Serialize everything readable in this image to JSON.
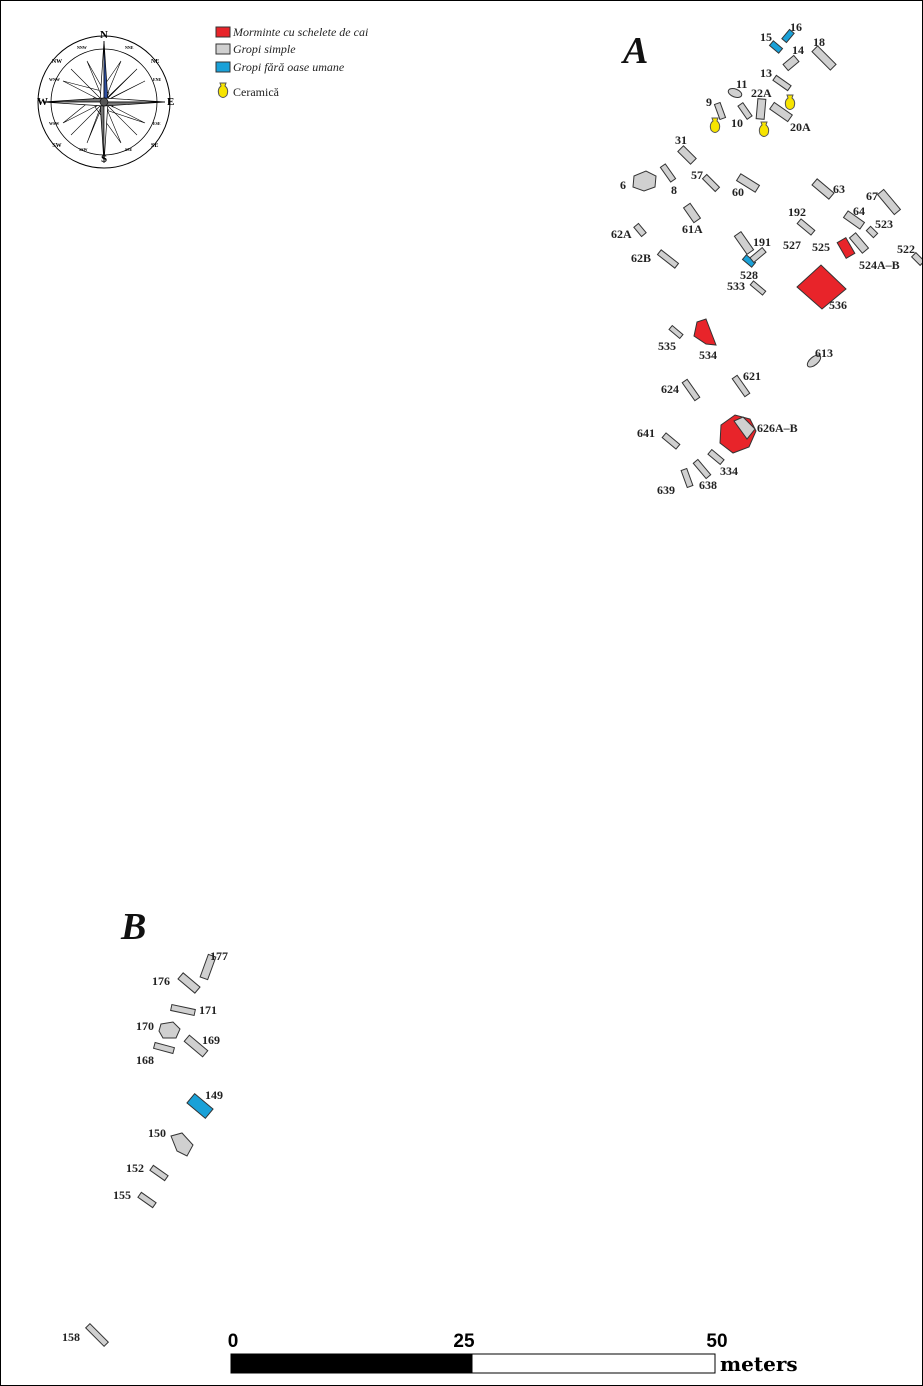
{
  "colors": {
    "horse_graves": "#e8242a",
    "simple_pits": "#d0d0d0",
    "pits_no_human_bones": "#1aa1d8",
    "ceramics": "#f7e400",
    "compass_north": "#2f4fa0"
  },
  "zones": {
    "a": "A",
    "b": "B"
  },
  "legend": {
    "horse_graves": "Morminte cu schelete de cai",
    "simple_pits": "Gropi simple",
    "pits_no_human_bones": "Gropi fără oase umane",
    "ceramics": "Ceramică"
  },
  "compass": {
    "n": "N",
    "s": "S",
    "e": "E",
    "w": "W",
    "ne": "NE",
    "nw": "NW",
    "se": "SE",
    "sw": "SW",
    "nne": "NNE",
    "nnw": "NNW",
    "ene": "ENE",
    "wnw": "WNW",
    "ese": "ESE",
    "wsw": "WSW",
    "sse": "SSE",
    "ssw": "SSW"
  },
  "scale": {
    "start": "0",
    "mid": "25",
    "end": "50",
    "unit": "meters"
  },
  "features": {
    "f15": "15",
    "f16": "16",
    "f14": "14",
    "f18": "18",
    "f13": "13",
    "f11": "11",
    "f22a": "22A",
    "f9": "9",
    "f10": "10",
    "f20a": "20A",
    "f31": "31",
    "f6": "6",
    "f8": "8",
    "f57": "57",
    "f60": "60",
    "f63": "63",
    "f67": "67",
    "f64": "64",
    "f523": "523",
    "f192": "192",
    "f61a": "61A",
    "f62a": "62A",
    "f62b": "62B",
    "f191": "191",
    "f527": "527",
    "f525": "525",
    "f524ab": "524A–B",
    "f522": "522",
    "f528": "528",
    "f533": "533",
    "f536": "536",
    "f535": "535",
    "f534": "534",
    "f613": "613",
    "f621": "621",
    "f624": "624",
    "f641": "641",
    "f626ab": "626A–B",
    "f334": "334",
    "f638": "638",
    "f639": "639",
    "f177": "177",
    "f176": "176",
    "f171": "171",
    "f170": "170",
    "f169": "169",
    "f168": "168",
    "f149": "149",
    "f150": "150",
    "f152": "152",
    "f155": "155",
    "f158": "158"
  }
}
